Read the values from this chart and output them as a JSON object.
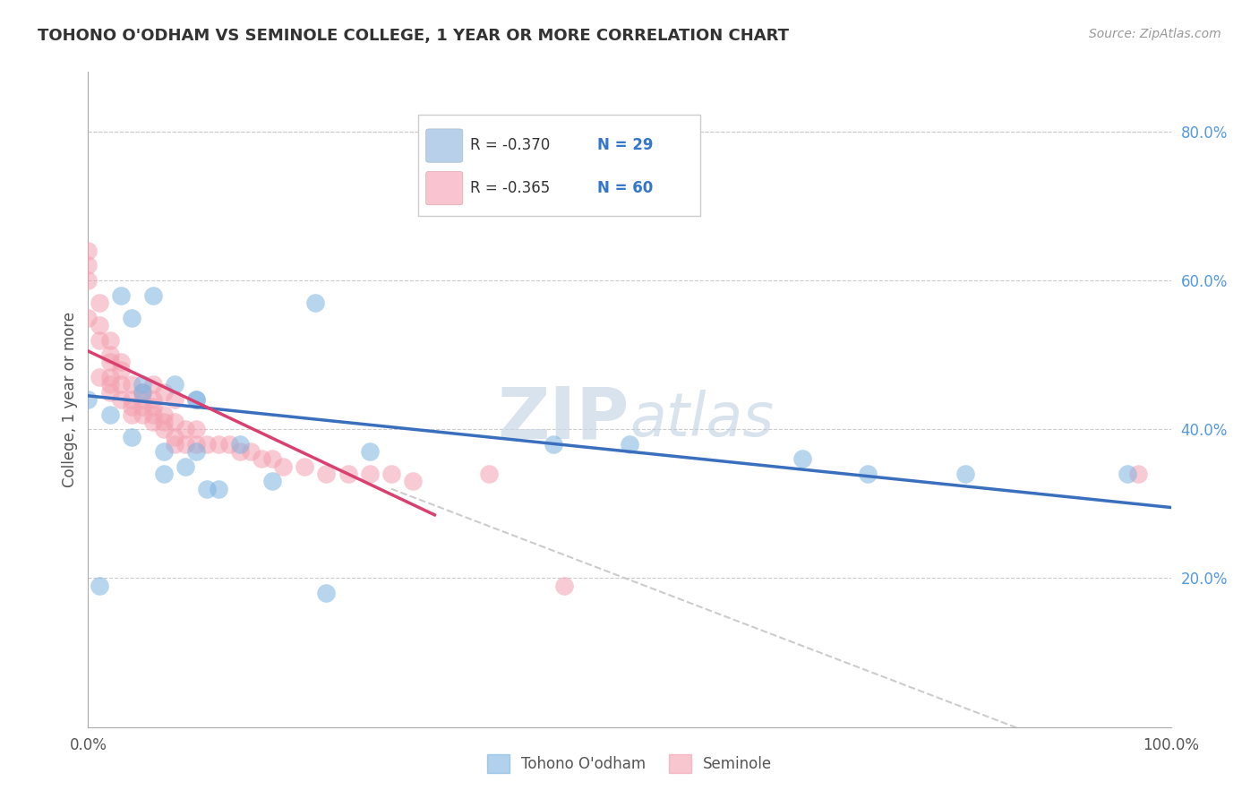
{
  "title": "TOHONO O'ODHAM VS SEMINOLE COLLEGE, 1 YEAR OR MORE CORRELATION CHART",
  "source": "Source: ZipAtlas.com",
  "ylabel": "College, 1 year or more",
  "xlim": [
    0,
    1.0
  ],
  "ylim": [
    0,
    0.88
  ],
  "yticks": [
    0.2,
    0.4,
    0.6,
    0.8
  ],
  "yticklabels": [
    "20.0%",
    "40.0%",
    "60.0%",
    "80.0%"
  ],
  "grid_color": "#cccccc",
  "legend_r1": "R = -0.370",
  "legend_n1": "N = 29",
  "legend_r2": "R = -0.365",
  "legend_n2": "N = 60",
  "legend_label1": "Tohono O'odham",
  "legend_label2": "Seminole",
  "blue_color": "#7eb3e0",
  "pink_color": "#f4a0b0",
  "blue_fill": "#b8d0ea",
  "pink_fill": "#f9c4d0",
  "line_blue": "#3a6fbe",
  "line_pink": "#d94070",
  "dashed_color": "#cccccc",
  "tohono_x": [
    0.0,
    0.01,
    0.02,
    0.03,
    0.04,
    0.04,
    0.05,
    0.05,
    0.06,
    0.07,
    0.07,
    0.08,
    0.09,
    0.1,
    0.1,
    0.1,
    0.11,
    0.12,
    0.14,
    0.17,
    0.21,
    0.22,
    0.26,
    0.43,
    0.5,
    0.66,
    0.72,
    0.81,
    0.96
  ],
  "tohono_y": [
    0.44,
    0.19,
    0.42,
    0.58,
    0.39,
    0.55,
    0.46,
    0.45,
    0.58,
    0.37,
    0.34,
    0.46,
    0.35,
    0.44,
    0.37,
    0.44,
    0.32,
    0.32,
    0.38,
    0.33,
    0.57,
    0.18,
    0.37,
    0.38,
    0.38,
    0.36,
    0.34,
    0.34,
    0.34
  ],
  "seminole_x": [
    0.0,
    0.0,
    0.0,
    0.0,
    0.01,
    0.01,
    0.01,
    0.01,
    0.02,
    0.02,
    0.02,
    0.02,
    0.02,
    0.02,
    0.03,
    0.03,
    0.03,
    0.03,
    0.04,
    0.04,
    0.04,
    0.04,
    0.05,
    0.05,
    0.05,
    0.05,
    0.06,
    0.06,
    0.06,
    0.06,
    0.06,
    0.07,
    0.07,
    0.07,
    0.07,
    0.08,
    0.08,
    0.08,
    0.08,
    0.09,
    0.09,
    0.1,
    0.1,
    0.11,
    0.12,
    0.13,
    0.14,
    0.15,
    0.16,
    0.17,
    0.18,
    0.2,
    0.22,
    0.24,
    0.26,
    0.28,
    0.3,
    0.37,
    0.44,
    0.97
  ],
  "seminole_y": [
    0.64,
    0.62,
    0.6,
    0.55,
    0.57,
    0.54,
    0.52,
    0.47,
    0.52,
    0.5,
    0.49,
    0.47,
    0.46,
    0.45,
    0.49,
    0.48,
    0.46,
    0.44,
    0.46,
    0.44,
    0.43,
    0.42,
    0.45,
    0.44,
    0.43,
    0.42,
    0.46,
    0.44,
    0.43,
    0.42,
    0.41,
    0.45,
    0.42,
    0.41,
    0.4,
    0.44,
    0.41,
    0.39,
    0.38,
    0.4,
    0.38,
    0.4,
    0.38,
    0.38,
    0.38,
    0.38,
    0.37,
    0.37,
    0.36,
    0.36,
    0.35,
    0.35,
    0.34,
    0.34,
    0.34,
    0.34,
    0.33,
    0.34,
    0.19,
    0.34
  ],
  "blue_trendline": [
    0.0,
    1.0,
    0.445,
    0.295
  ],
  "pink_trendline": [
    0.0,
    0.32,
    0.505,
    0.285
  ],
  "dashed_trendline": [
    0.28,
    1.0,
    0.32,
    -0.08
  ]
}
